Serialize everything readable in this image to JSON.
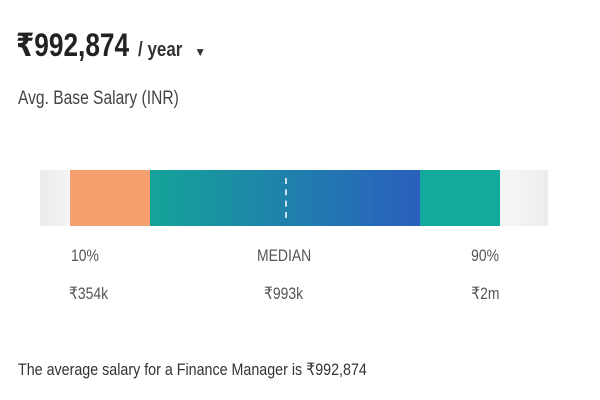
{
  "salary": {
    "amount": "₹992,874",
    "period": "/ year",
    "caret_icon": "caret-down-icon",
    "caret_glyph": "▼",
    "label": "Avg. Base Salary (INR)"
  },
  "range": {
    "low_color": "#f6a06e",
    "mid_color_start": "#14a399",
    "mid_color_end": "#2a5fbd",
    "high_color": "#13aa9e",
    "p10": {
      "label": "10%",
      "value": "₹354k"
    },
    "median": {
      "label": "MEDIAN",
      "value": "₹993k"
    },
    "p90": {
      "label": "90%",
      "value": "₹2m"
    }
  },
  "summary": "The average salary for a Finance Manager is ₹992,874"
}
